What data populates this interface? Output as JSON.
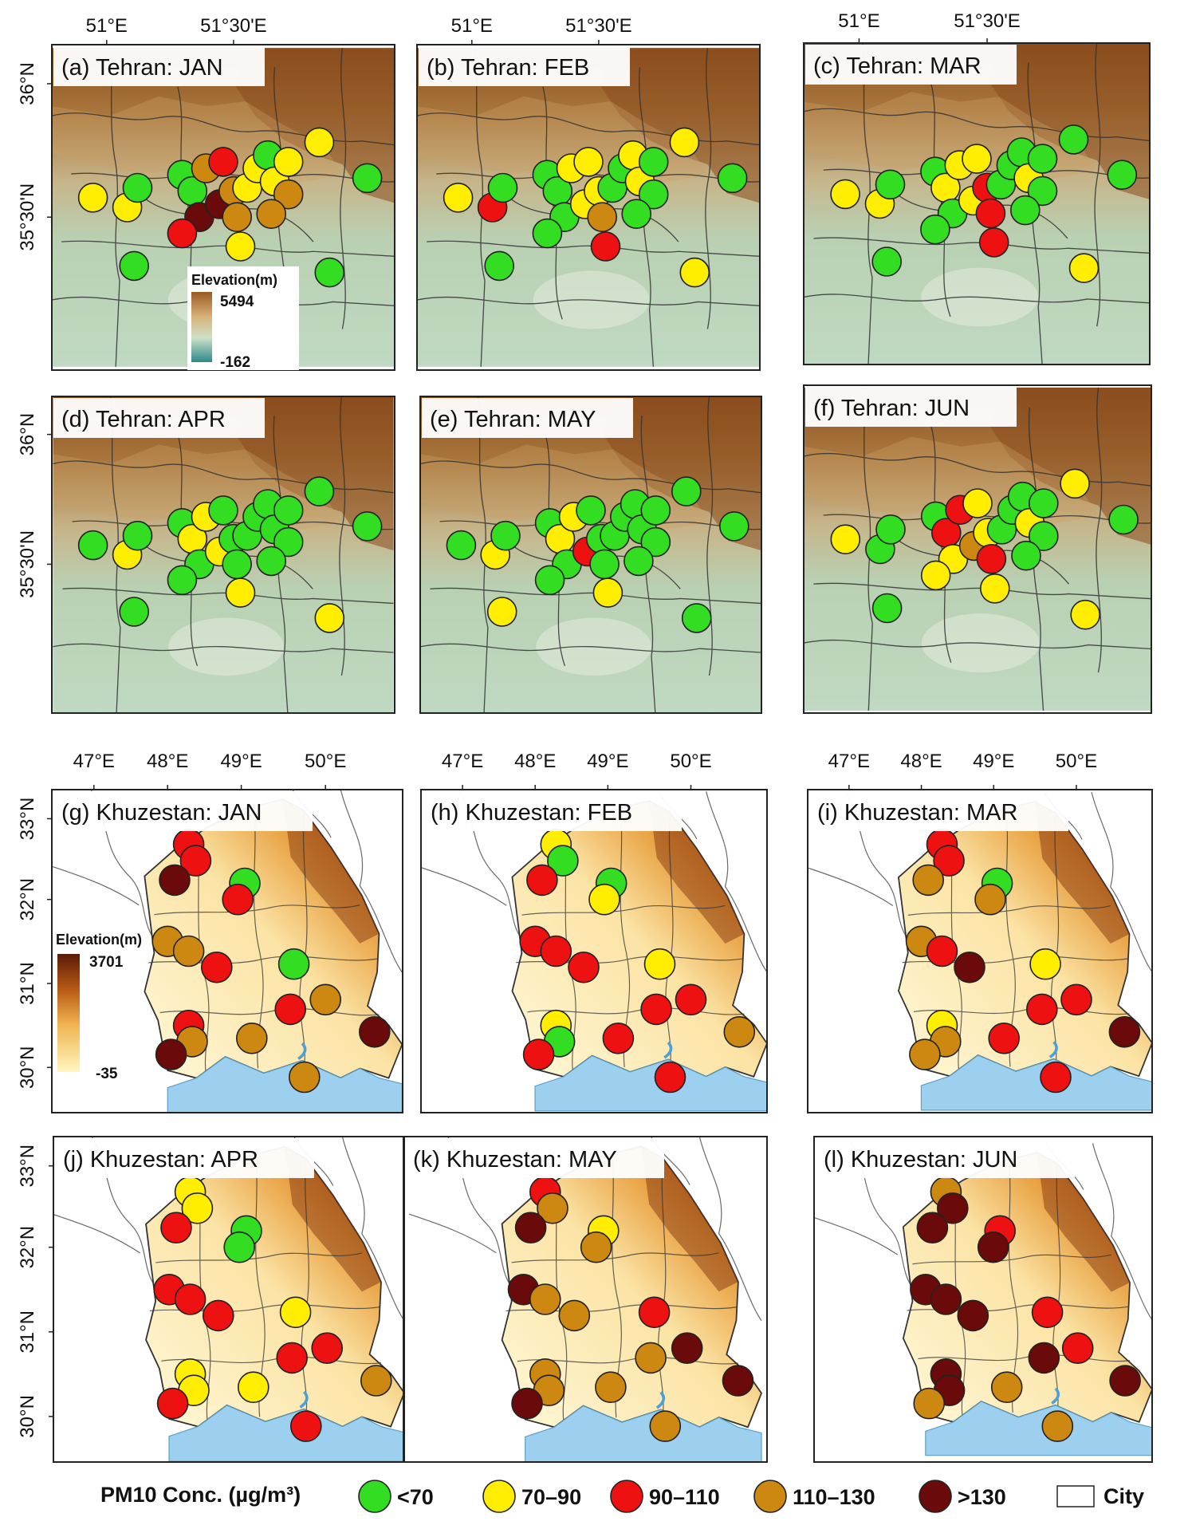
{
  "figure": {
    "legend": {
      "title": "PM10 Conc. (µg/m³)",
      "classes": [
        {
          "key": "g",
          "label": "<70",
          "color": "#33dd22"
        },
        {
          "key": "y",
          "label": "70–90",
          "color": "#ffee00"
        },
        {
          "key": "r",
          "label": "90–110",
          "color": "#ee1111"
        },
        {
          "key": "o",
          "label": "110–130",
          "color": "#cc8811"
        },
        {
          "key": "d",
          "label": ">130",
          "color": "#6a0a0a"
        }
      ],
      "city_label": "City"
    },
    "tehran": {
      "x_ticks": [
        "51°E",
        "51°30'E"
      ],
      "y_ticks": [
        "36°N",
        "35°30'N"
      ],
      "colorbar": {
        "title": "Elevation(m)",
        "max": "5494",
        "min": "-162",
        "top_color": "#9a5a22",
        "bottom_color": "#2a8a8a"
      },
      "panels": [
        {
          "title": "(a) Tehran: JAN",
          "stations": [
            "y",
            "y",
            "g",
            "g",
            "g",
            "o",
            "r",
            "d",
            "d",
            "o",
            "o",
            "y",
            "y",
            "g",
            "y",
            "y",
            "o",
            "y",
            "o",
            "g",
            "r",
            "g",
            "y",
            "g"
          ]
        },
        {
          "title": "(b) Tehran: FEB",
          "stations": [
            "y",
            "r",
            "g",
            "g",
            "g",
            "y",
            "y",
            "g",
            "y",
            "y",
            "o",
            "g",
            "g",
            "y",
            "y",
            "g",
            "g",
            "r",
            "g",
            "y",
            "g",
            "g",
            "y",
            "g"
          ]
        },
        {
          "title": "(c) Tehran: MAR",
          "stations": [
            "y",
            "y",
            "g",
            "g",
            "y",
            "y",
            "y",
            "g",
            "y",
            "r",
            "r",
            "g",
            "g",
            "g",
            "y",
            "g",
            "g",
            "r",
            "g",
            "y",
            "g",
            "g",
            "g",
            "g"
          ]
        },
        {
          "title": "(d) Tehran: APR",
          "stations": [
            "g",
            "y",
            "g",
            "g",
            "y",
            "y",
            "g",
            "g",
            "y",
            "g",
            "g",
            "g",
            "g",
            "g",
            "g",
            "g",
            "g",
            "y",
            "g",
            "y",
            "g",
            "g",
            "g",
            "g"
          ]
        },
        {
          "title": "(e) Tehran: MAY",
          "stations": [
            "g",
            "y",
            "g",
            "g",
            "y",
            "y",
            "g",
            "g",
            "r",
            "g",
            "g",
            "g",
            "g",
            "g",
            "g",
            "g",
            "g",
            "y",
            "g",
            "g",
            "g",
            "y",
            "g",
            "g"
          ]
        },
        {
          "title": "(f) Tehran: JUN",
          "stations": [
            "y",
            "g",
            "g",
            "g",
            "r",
            "r",
            "y",
            "y",
            "o",
            "y",
            "r",
            "g",
            "g",
            "g",
            "y",
            "g",
            "g",
            "y",
            "g",
            "y",
            "y",
            "g",
            "y",
            "g"
          ]
        }
      ]
    },
    "khuzestan": {
      "x_ticks": [
        "47°E",
        "48°E",
        "49°E",
        "50°E"
      ],
      "y_ticks": [
        "33°N",
        "32°N",
        "31°N",
        "30°N"
      ],
      "colorbar": {
        "title": "Elevation(m)",
        "max": "3701",
        "min": "-35",
        "top_color": "#5a1a08",
        "bottom_color": "#fff6c0"
      },
      "panels": [
        {
          "title": "(g) Khuzestan: JAN",
          "stations": [
            "r",
            "r",
            "d",
            "g",
            "r",
            "o",
            "o",
            "r",
            "g",
            "r",
            "o",
            "r",
            "o",
            "o",
            "d",
            "d",
            "o"
          ]
        },
        {
          "title": "(h) Khuzestan: FEB",
          "stations": [
            "y",
            "g",
            "r",
            "g",
            "y",
            "r",
            "r",
            "r",
            "y",
            "r",
            "r",
            "y",
            "r",
            "g",
            "r",
            "o",
            "r"
          ]
        },
        {
          "title": "(i) Khuzestan: MAR",
          "stations": [
            "r",
            "r",
            "o",
            "g",
            "o",
            "o",
            "r",
            "d",
            "y",
            "r",
            "r",
            "y",
            "r",
            "o",
            "o",
            "d",
            "r"
          ]
        },
        {
          "title": "(j) Khuzestan: APR",
          "stations": [
            "y",
            "y",
            "r",
            "g",
            "g",
            "r",
            "r",
            "r",
            "y",
            "r",
            "r",
            "y",
            "y",
            "y",
            "r",
            "o",
            "r"
          ]
        },
        {
          "title": "(k) Khuzestan: MAY",
          "stations": [
            "r",
            "o",
            "d",
            "y",
            "o",
            "d",
            "o",
            "o",
            "r",
            "o",
            "d",
            "o",
            "o",
            "o",
            "d",
            "d",
            "o"
          ]
        },
        {
          "title": "(l) Khuzestan: JUN",
          "stations": [
            "o",
            "d",
            "d",
            "r",
            "d",
            "d",
            "d",
            "d",
            "r",
            "d",
            "r",
            "d",
            "o",
            "d",
            "o",
            "d",
            "o"
          ]
        }
      ]
    }
  }
}
